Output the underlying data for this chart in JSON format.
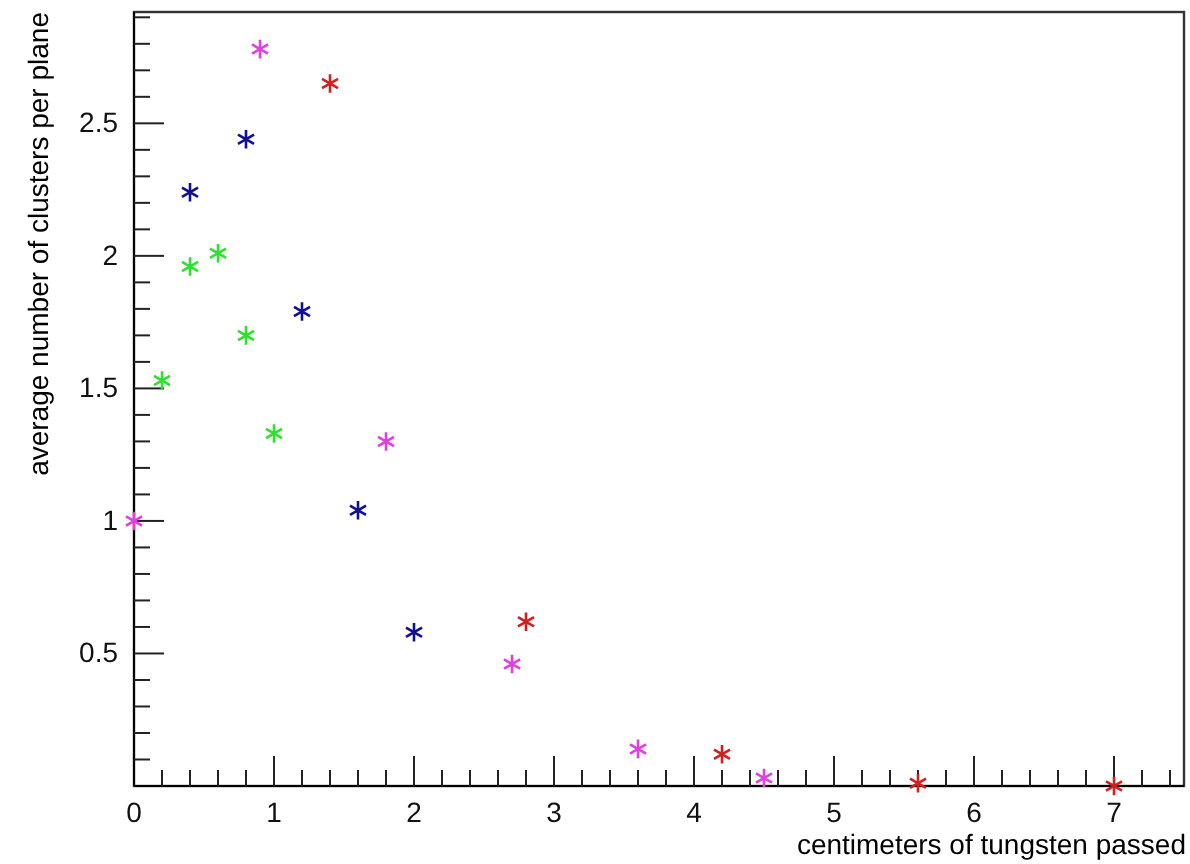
{
  "chart_data": {
    "type": "scatter",
    "xlabel": "centimeters of tungsten passed",
    "ylabel": "average number of clusters per plane",
    "marker": "cross",
    "grid": false,
    "xlim": [
      0,
      7.5
    ],
    "ylim": [
      0,
      2.92
    ],
    "xticks": [
      0,
      {
        "value": 0.2,
        "label": null
      },
      {
        "value": 0.4,
        "label": null
      },
      {
        "value": 0.6,
        "label": null
      },
      {
        "value": 0.8,
        "label": null
      },
      1,
      {
        "value": 1.2,
        "label": null
      },
      {
        "value": 1.4,
        "label": null
      },
      {
        "value": 1.6,
        "label": null
      },
      {
        "value": 1.8,
        "label": null
      },
      2,
      {
        "value": 2.2,
        "label": null
      },
      {
        "value": 2.4,
        "label": null
      },
      {
        "value": 2.6,
        "label": null
      },
      {
        "value": 2.8,
        "label": null
      },
      3,
      {
        "value": 3.2,
        "label": null
      },
      {
        "value": 3.4,
        "label": null
      },
      {
        "value": 3.6,
        "label": null
      },
      {
        "value": 3.8,
        "label": null
      },
      4,
      {
        "value": 4.2,
        "label": null
      },
      {
        "value": 4.4,
        "label": null
      },
      {
        "value": 4.6,
        "label": null
      },
      {
        "value": 4.8,
        "label": null
      },
      5,
      {
        "value": 5.2,
        "label": null
      },
      {
        "value": 5.4,
        "label": null
      },
      {
        "value": 5.6,
        "label": null
      },
      {
        "value": 5.8,
        "label": null
      },
      6,
      {
        "value": 6.2,
        "label": null
      },
      {
        "value": 6.4,
        "label": null
      },
      {
        "value": 6.6,
        "label": null
      },
      {
        "value": 6.8,
        "label": null
      },
      7,
      {
        "value": 7.2,
        "label": null
      },
      {
        "value": 7.4,
        "label": null
      }
    ],
    "yticks": [
      {
        "value": 0.1,
        "label": null
      },
      {
        "value": 0.2,
        "label": null
      },
      {
        "value": 0.3,
        "label": null
      },
      {
        "value": 0.4,
        "label": null
      },
      0.5,
      {
        "value": 0.6,
        "label": null
      },
      {
        "value": 0.7,
        "label": null
      },
      {
        "value": 0.8,
        "label": null
      },
      {
        "value": 0.9,
        "label": null
      },
      1,
      {
        "value": 1.1,
        "label": null
      },
      {
        "value": 1.2,
        "label": null
      },
      {
        "value": 1.3,
        "label": null
      },
      {
        "value": 1.4,
        "label": null
      },
      1.5,
      {
        "value": 1.6,
        "label": null
      },
      {
        "value": 1.7,
        "label": null
      },
      {
        "value": 1.8,
        "label": null
      },
      {
        "value": 1.9,
        "label": null
      },
      2,
      {
        "value": 2.1,
        "label": null
      },
      {
        "value": 2.2,
        "label": null
      },
      {
        "value": 2.3,
        "label": null
      },
      {
        "value": 2.4,
        "label": null
      },
      2.5,
      {
        "value": 2.6,
        "label": null
      },
      {
        "value": 2.7,
        "label": null
      },
      {
        "value": 2.8,
        "label": null
      },
      {
        "value": 2.9,
        "label": null
      }
    ],
    "series": [
      {
        "color": "#e040e0",
        "x": [
          0,
          0.9,
          1.8,
          2.7,
          3.6,
          4.5
        ],
        "values": [
          1.0,
          2.78,
          1.3,
          0.46,
          0.14,
          0.03
        ]
      },
      {
        "color": "#d02020",
        "x": [
          1.4,
          2.8,
          4.2,
          5.6,
          7.0
        ],
        "values": [
          2.65,
          0.62,
          0.12,
          0.01,
          0.0
        ]
      },
      {
        "color": "#101090",
        "x": [
          0.4,
          0.8,
          1.2,
          1.6,
          2.0
        ],
        "values": [
          2.24,
          2.44,
          1.79,
          1.04,
          0.58
        ]
      },
      {
        "color": "#30e030",
        "x": [
          0.2,
          0.4,
          0.6,
          0.8,
          1.0
        ],
        "values": [
          1.53,
          1.96,
          2.01,
          1.7,
          1.33
        ]
      }
    ]
  }
}
